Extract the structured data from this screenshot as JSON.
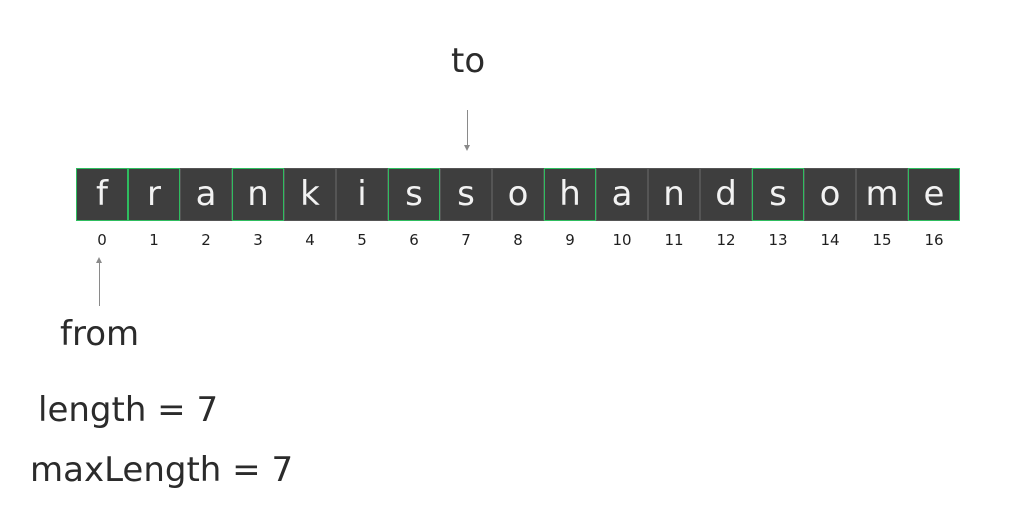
{
  "pointers": {
    "to_label": "to",
    "to_index": 7,
    "from_label": "from",
    "from_index": 0
  },
  "cells": [
    {
      "char": "f",
      "index": "0",
      "highlight": true
    },
    {
      "char": "r",
      "index": "1",
      "highlight": true
    },
    {
      "char": "a",
      "index": "2",
      "highlight": false
    },
    {
      "char": "n",
      "index": "3",
      "highlight": true
    },
    {
      "char": "k",
      "index": "4",
      "highlight": false
    },
    {
      "char": "i",
      "index": "5",
      "highlight": false
    },
    {
      "char": "s",
      "index": "6",
      "highlight": true
    },
    {
      "char": "s",
      "index": "7",
      "highlight": false
    },
    {
      "char": "o",
      "index": "8",
      "highlight": false
    },
    {
      "char": "h",
      "index": "9",
      "highlight": true
    },
    {
      "char": "a",
      "index": "10",
      "highlight": false
    },
    {
      "char": "n",
      "index": "11",
      "highlight": false
    },
    {
      "char": "d",
      "index": "12",
      "highlight": false
    },
    {
      "char": "s",
      "index": "13",
      "highlight": true
    },
    {
      "char": "o",
      "index": "14",
      "highlight": false
    },
    {
      "char": "m",
      "index": "15",
      "highlight": false
    },
    {
      "char": "e",
      "index": "16",
      "highlight": true
    }
  ],
  "stats": {
    "length_text": "length = 7",
    "max_length_text": "maxLength = 7"
  },
  "colors": {
    "cell_fill": "#3e3e3e",
    "cell_border": "#555555",
    "highlight_border": "#2ebd5f",
    "cell_text": "#f2f2f2",
    "arrow": "#8a8a8a"
  }
}
